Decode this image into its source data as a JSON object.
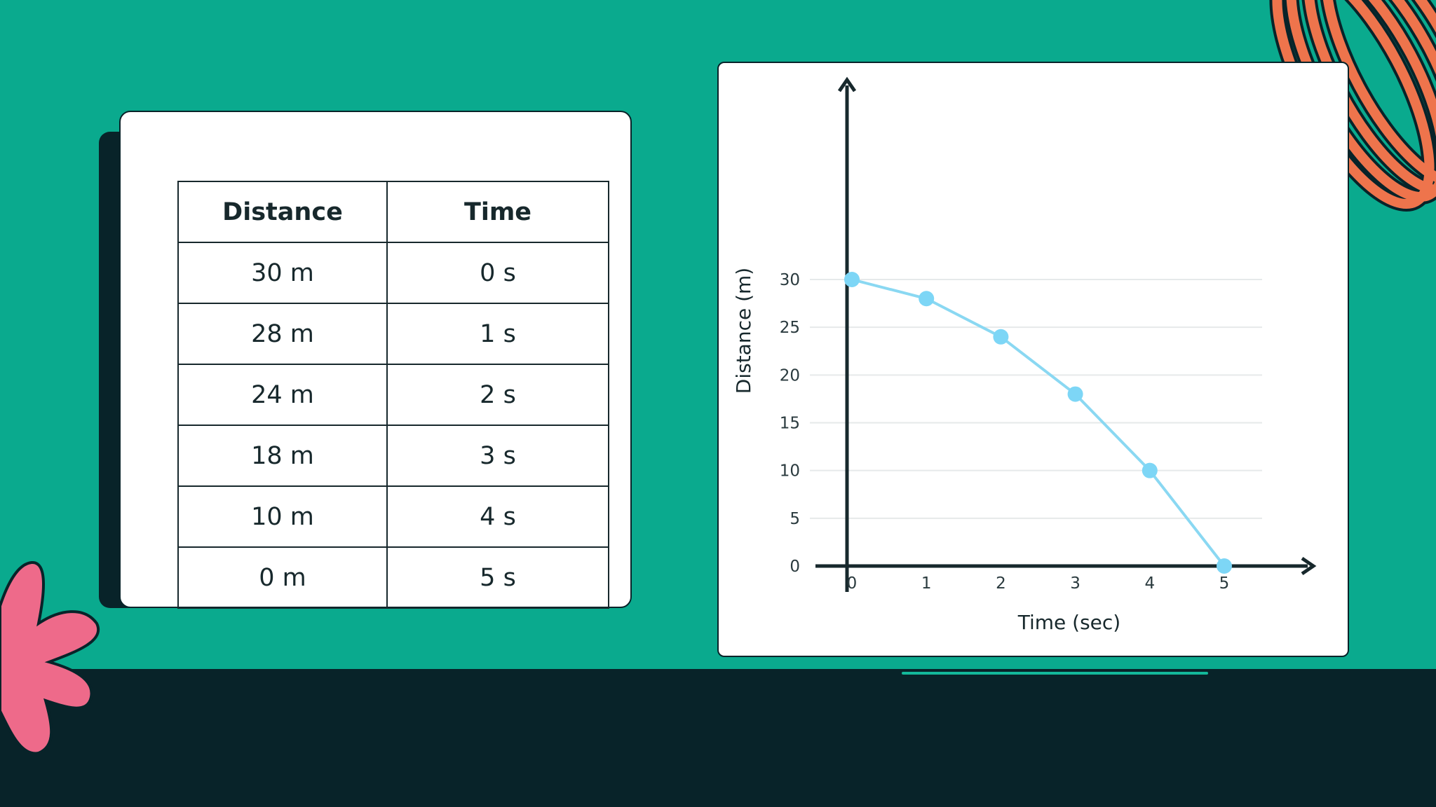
{
  "table": {
    "headers": [
      "Distance",
      "Time"
    ],
    "rows": [
      [
        "30 m",
        "0 s"
      ],
      [
        "28 m",
        "1 s"
      ],
      [
        "24 m",
        "2 s"
      ],
      [
        "18 m",
        "3 s"
      ],
      [
        "10 m",
        "4 s"
      ],
      [
        "0 m",
        "5 s"
      ]
    ]
  },
  "chart_data": {
    "type": "line",
    "x": [
      0,
      1,
      2,
      3,
      4,
      5
    ],
    "values": [
      30,
      28,
      24,
      18,
      10,
      0
    ],
    "xlabel": "Time (sec)",
    "ylabel": "Distance (m)",
    "xticks": [
      "0",
      "1",
      "2",
      "3",
      "4",
      "5"
    ],
    "yticks": [
      "0",
      "5",
      "10",
      "15",
      "20",
      "25",
      "30"
    ],
    "xlim": [
      0,
      5
    ],
    "ylim": [
      0,
      30
    ],
    "grid": true,
    "line_color": "#8ad8f2",
    "point_color": "#7dd6f6",
    "axis_color": "#17282c"
  },
  "colors": {
    "background": "#0aaa8e",
    "floor": "#082329",
    "blob_pink": "#ee6a8a",
    "rings_orange": "#ee744c"
  }
}
